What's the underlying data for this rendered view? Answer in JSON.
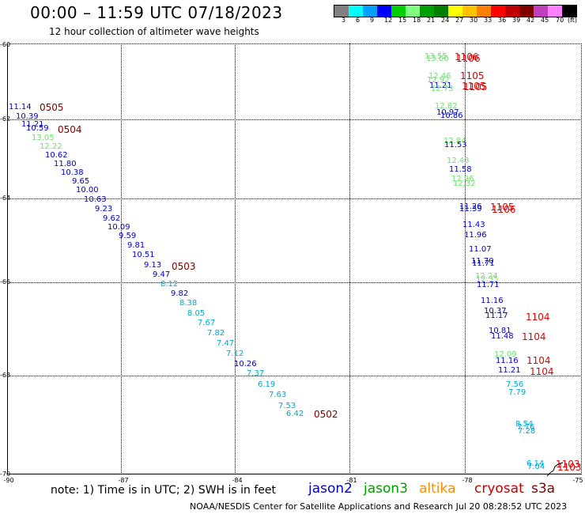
{
  "title": "00:00 – 11:59 UTC 07/18/2023",
  "subtitle": "12 hour collection of altimeter wave heights",
  "legend": {
    "colors": [
      "#808080",
      "#00ffff",
      "#00a0ff",
      "#0000ff",
      "#00d000",
      "#80ff80",
      "#00a000",
      "#008000",
      "#ffff00",
      "#ffc000",
      "#ff8000",
      "#ff0000",
      "#c00000",
      "#800000",
      "#c040c0",
      "#ff80ff",
      "#000000"
    ],
    "labels": [
      "3",
      "6",
      "9",
      "12",
      "15",
      "18",
      "21",
      "24",
      "27",
      "30",
      "33",
      "36",
      "39",
      "42",
      "45",
      "70",
      "(ft)"
    ]
  },
  "axes": {
    "lat_ticks": [
      "-60",
      "-62",
      "-64",
      "-66",
      "-68",
      "-70"
    ],
    "lon_ticks": [
      "-90",
      "-87",
      "-84",
      "-81",
      "-78",
      "-75"
    ]
  },
  "colors": {
    "jason2": "#0000c8",
    "jason3": "#00a000",
    "altika": "#ff8c00",
    "cryosat": "#c80000",
    "s3a": "#800000",
    "light_green": "#70e070",
    "cyan": "#00a8d0",
    "dark_red": "#800000",
    "red": "#e00000"
  },
  "chart_data": {
    "type": "scatter",
    "wave_heights": [
      {
        "v": "11.14",
        "c": "blue"
      },
      {
        "v": "10.39",
        "c": "blue"
      },
      {
        "v": "11.21",
        "c": "blue"
      },
      {
        "v": "10.59",
        "c": "blue"
      },
      {
        "v": "13.05",
        "c": "lgreen"
      },
      {
        "v": "12.22",
        "c": "lgreen"
      },
      {
        "v": "10.62",
        "c": "blue"
      },
      {
        "v": "11.80",
        "c": "blue"
      },
      {
        "v": "10.38",
        "c": "blue"
      },
      {
        "v": "9.65",
        "c": "blue"
      },
      {
        "v": "10.00",
        "c": "blue"
      },
      {
        "v": "10.63",
        "c": "blue"
      },
      {
        "v": "9.23",
        "c": "blue"
      },
      {
        "v": "9.62",
        "c": "blue"
      },
      {
        "v": "10.09",
        "c": "blue"
      },
      {
        "v": "9.59",
        "c": "blue"
      },
      {
        "v": "9.81",
        "c": "blue"
      },
      {
        "v": "10.51",
        "c": "blue"
      },
      {
        "v": "9.13",
        "c": "blue"
      },
      {
        "v": "9.47",
        "c": "blue"
      },
      {
        "v": "8.12",
        "c": "cyan"
      },
      {
        "v": "9.82",
        "c": "blue"
      },
      {
        "v": "8.38",
        "c": "cyan"
      },
      {
        "v": "8.05",
        "c": "cyan"
      },
      {
        "v": "7.67",
        "c": "cyan"
      },
      {
        "v": "7.82",
        "c": "cyan"
      },
      {
        "v": "7.47",
        "c": "cyan"
      },
      {
        "v": "7.12",
        "c": "cyan"
      },
      {
        "v": "10.26",
        "c": "blue"
      },
      {
        "v": "7.37",
        "c": "cyan"
      },
      {
        "v": "6.19",
        "c": "cyan"
      },
      {
        "v": "7.63",
        "c": "cyan"
      },
      {
        "v": "7.53",
        "c": "cyan"
      },
      {
        "v": "6.42",
        "c": "cyan"
      },
      {
        "v": "13.55",
        "c": "lgreen"
      },
      {
        "v": "13.00",
        "c": "lgreen"
      },
      {
        "v": "12.46",
        "c": "lgreen"
      },
      {
        "v": "12.92",
        "c": "lgreen"
      },
      {
        "v": "11.21",
        "c": "blue"
      },
      {
        "v": "12.73",
        "c": "lgreen"
      },
      {
        "v": "12.82",
        "c": "lgreen"
      },
      {
        "v": "10.97",
        "c": "blue"
      },
      {
        "v": "10.86",
        "c": "blue"
      },
      {
        "v": "12.84",
        "c": "lgreen"
      },
      {
        "v": "11.53",
        "c": "blue"
      },
      {
        "v": "12.43",
        "c": "lgreen"
      },
      {
        "v": "11.58",
        "c": "blue"
      },
      {
        "v": "12.96",
        "c": "lgreen"
      },
      {
        "v": "12.32",
        "c": "lgreen"
      },
      {
        "v": "11.26",
        "c": "blue"
      },
      {
        "v": "11.39",
        "c": "blue"
      },
      {
        "v": "11.43",
        "c": "blue"
      },
      {
        "v": "11.96",
        "c": "blue"
      },
      {
        "v": "11.07",
        "c": "blue"
      },
      {
        "v": "11.70",
        "c": "blue"
      },
      {
        "v": "11.71",
        "c": "blue"
      },
      {
        "v": "12.24",
        "c": "lgreen"
      },
      {
        "v": "12.35",
        "c": "lgreen"
      },
      {
        "v": "11.71",
        "c": "blue"
      },
      {
        "v": "11.16",
        "c": "blue"
      },
      {
        "v": "10.37",
        "c": "blue"
      },
      {
        "v": "11.17",
        "c": "blue"
      },
      {
        "v": "10.81",
        "c": "blue"
      },
      {
        "v": "11.48",
        "c": "blue"
      },
      {
        "v": "12.09",
        "c": "lgreen"
      },
      {
        "v": "11.16",
        "c": "blue"
      },
      {
        "v": "11.21",
        "c": "blue"
      },
      {
        "v": "7.56",
        "c": "cyan"
      },
      {
        "v": "7.79",
        "c": "cyan"
      },
      {
        "v": "8.54",
        "c": "cyan"
      },
      {
        "v": "7.76",
        "c": "cyan"
      },
      {
        "v": "7.28",
        "c": "cyan"
      },
      {
        "v": "6.14",
        "c": "cyan"
      },
      {
        "v": "7.04",
        "c": "cyan"
      }
    ],
    "times": [
      {
        "t": "0505",
        "c": "dred"
      },
      {
        "t": "0504",
        "c": "dred"
      },
      {
        "t": "0503",
        "c": "dred"
      },
      {
        "t": "0502",
        "c": "dred"
      },
      {
        "t": "1106",
        "c": "red"
      },
      {
        "t": "1106",
        "c": "red"
      },
      {
        "t": "1105",
        "c": "red"
      },
      {
        "t": "1105",
        "c": "red"
      },
      {
        "t": "1105",
        "c": "red"
      },
      {
        "t": "1105",
        "c": "red"
      },
      {
        "t": "1106",
        "c": "red"
      },
      {
        "t": "1104",
        "c": "red"
      },
      {
        "t": "1104",
        "c": "red"
      },
      {
        "t": "1104",
        "c": "red"
      },
      {
        "t": "1104",
        "c": "red"
      },
      {
        "t": "1103",
        "c": "red"
      },
      {
        "t": "1103",
        "c": "red"
      }
    ]
  },
  "note": "note: 1) Time is in UTC; 2) SWH is in feet",
  "satellites": {
    "jason2": "jason2",
    "jason3": "jason3",
    "altika": "altika",
    "cryosat": "cryosat",
    "s3a": "s3a"
  },
  "credit": "NOAA/NESDIS Center for Satellite Applications and Research    Jul 20 08:28:52 UTC 2023"
}
